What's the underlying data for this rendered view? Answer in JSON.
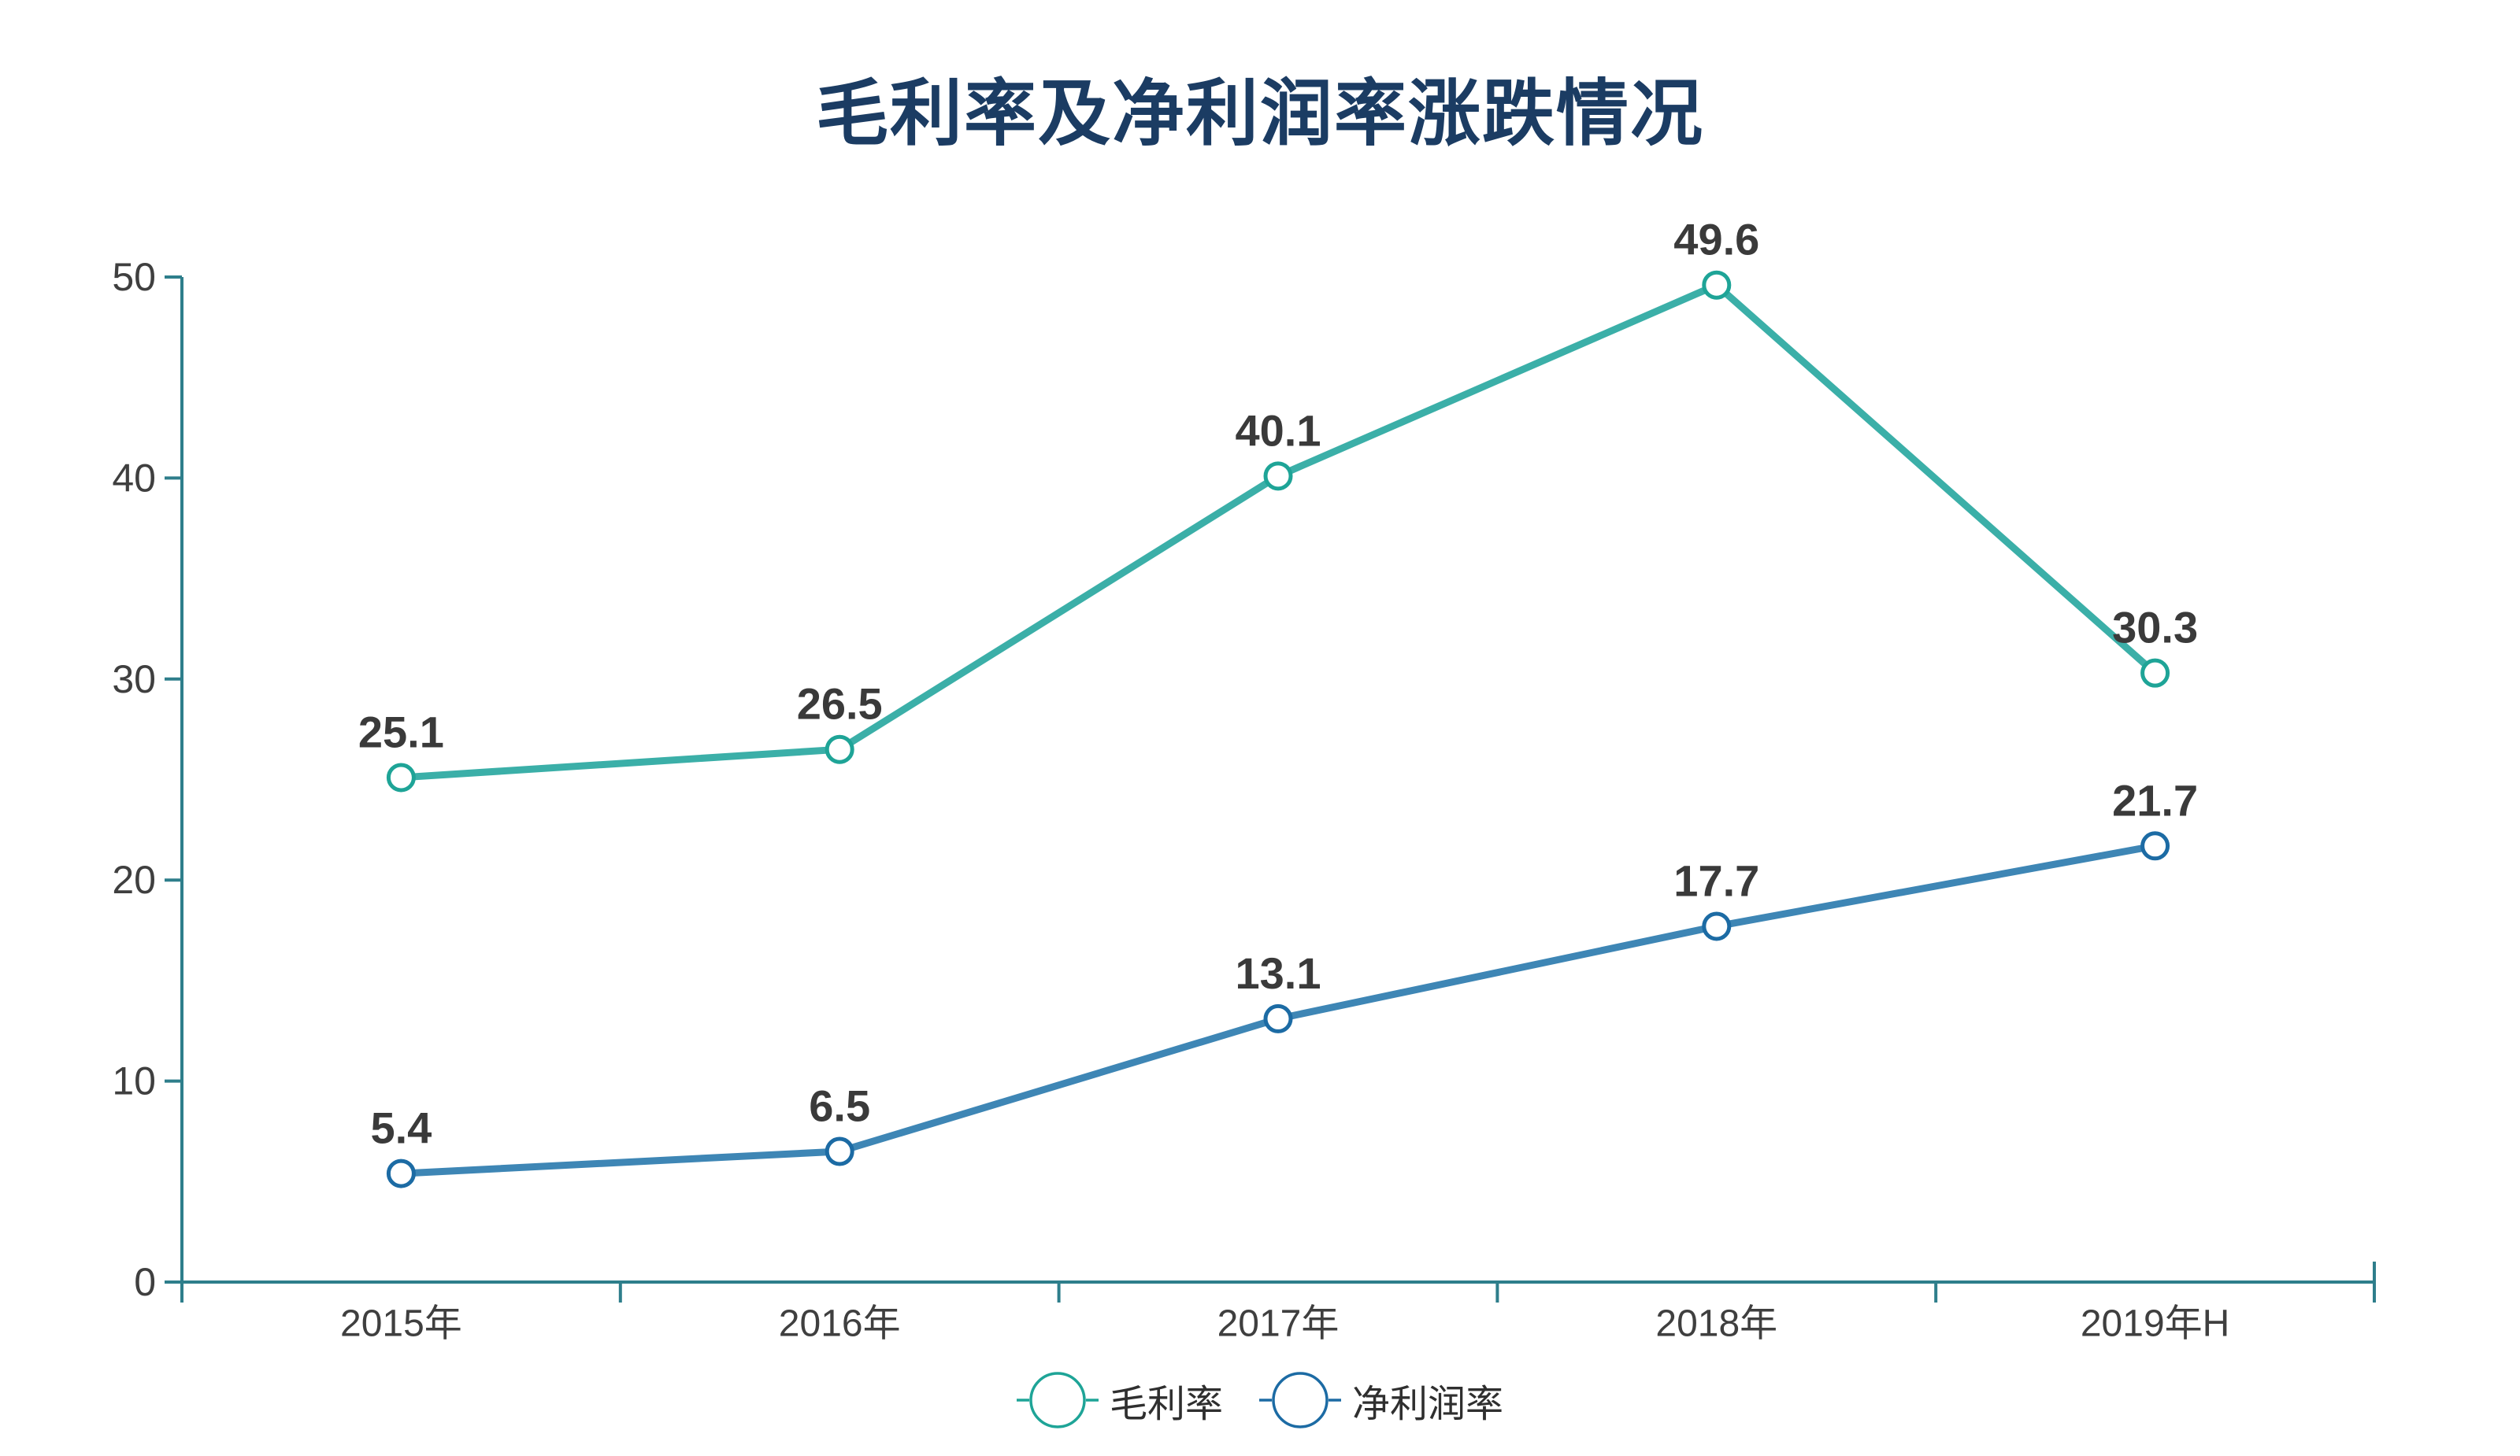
{
  "header": {
    "title": "毛利率及净利润率涨跌情况",
    "title_color": "#1b3c63"
  },
  "chart_data": {
    "type": "line",
    "title": "毛利率及净利润率涨跌情况",
    "categories": [
      "2015年",
      "2016年",
      "2017年",
      "2018年",
      "2019年H"
    ],
    "series": [
      {
        "name": "毛利率",
        "values": [
          25.1,
          26.5,
          40.1,
          49.6,
          30.3
        ],
        "line_color": "#3bafa8",
        "marker_stroke": "#1ea497"
      },
      {
        "name": "净利润率",
        "values": [
          5.4,
          6.5,
          13.1,
          17.7,
          21.7
        ],
        "line_color": "#3e86b5",
        "marker_stroke": "#1c6ba4"
      }
    ],
    "ylim": [
      0,
      50
    ],
    "yticks": [
      0,
      10,
      20,
      30,
      40,
      50
    ],
    "grid": "off",
    "legend_position": "bottom",
    "axis_color": "#2e7e8b",
    "tick_label_color": "#3f3f3f",
    "data_label_color": "#3a3a3a",
    "marker_fill": "#ffffff"
  },
  "legend": {
    "items": [
      {
        "label": "毛利率"
      },
      {
        "label": "净利润率"
      }
    ]
  }
}
